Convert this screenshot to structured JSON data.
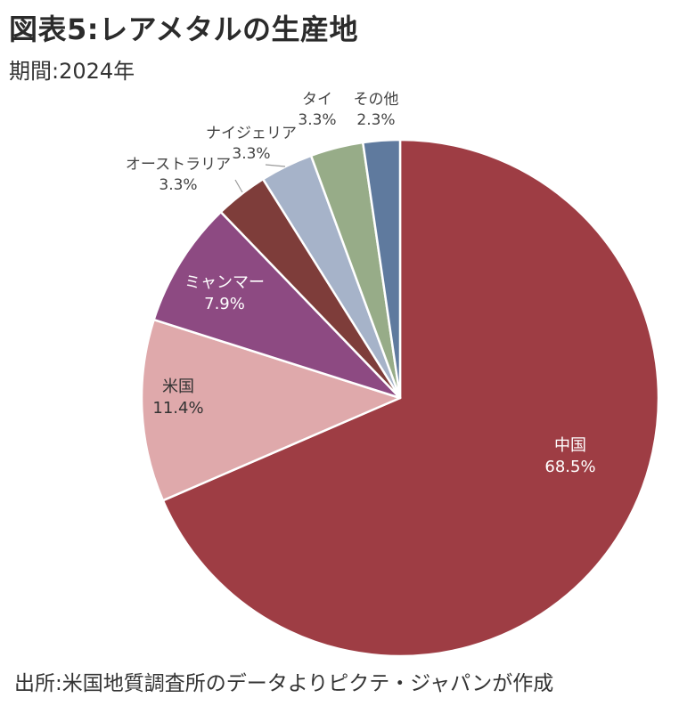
{
  "header": {
    "title": "図表5:レアメタルの生産地",
    "period": "期間:2024年"
  },
  "footer": {
    "source": "出所:米国地質調査所のデータよりピクテ・ジャパンが作成"
  },
  "chart_data": {
    "type": "pie",
    "title": "図表5:レアメタルの生産地",
    "unit": "%",
    "start_angle_deg": 0,
    "direction": "clockwise",
    "slices": [
      {
        "label": "中国",
        "value": 68.5,
        "value_label": "68.5%",
        "color": "#9e3d44",
        "label_color": "#ffffff"
      },
      {
        "label": "米国",
        "value": 11.4,
        "value_label": "11.4%",
        "color": "#dfa9ab",
        "label_color": "#333333"
      },
      {
        "label": "ミャンマー",
        "value": 7.9,
        "value_label": "7.9%",
        "color": "#8d4a82",
        "label_color": "#ffffff"
      },
      {
        "label": "オーストラリア",
        "value": 3.3,
        "value_label": "3.3%",
        "color": "#7e3d3a",
        "label_color": "#444444"
      },
      {
        "label": "ナイジェリア",
        "value": 3.3,
        "value_label": "3.3%",
        "color": "#a6b3c9",
        "label_color": "#444444"
      },
      {
        "label": "タイ",
        "value": 3.3,
        "value_label": "3.3%",
        "color": "#97ac88",
        "label_color": "#444444"
      },
      {
        "label": "その他",
        "value": 2.3,
        "value_label": "2.3%",
        "color": "#5f7a9e",
        "label_color": "#444444"
      }
    ]
  }
}
